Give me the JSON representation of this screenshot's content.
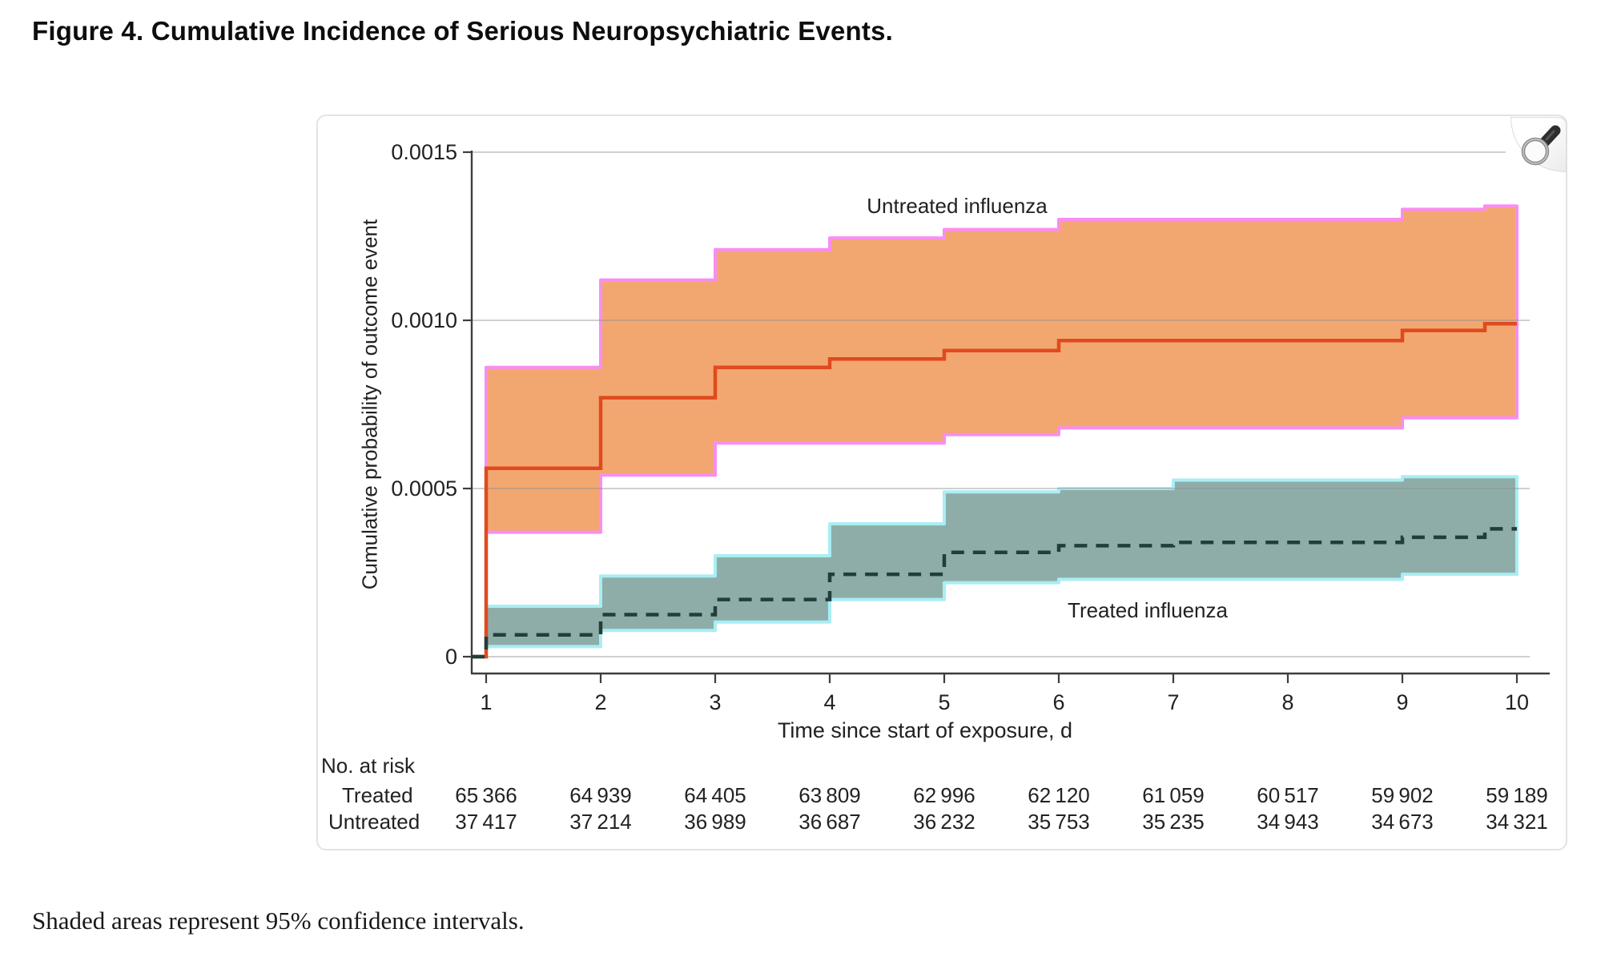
{
  "page": {
    "title": "Figure 4. Cumulative Incidence of Serious Neuropsychiatric Events.",
    "footnote": "Shaded areas represent 95% confidence intervals."
  },
  "panel": {
    "zoom_icon": "magnifier-icon"
  },
  "chart_data": {
    "type": "line",
    "subtype": "cumulative-incidence-step-curves-with-95pct-CI-bands",
    "title": "",
    "xlabel": "Time since start of exposure, d",
    "ylabel": "Cumulative probability of outcome event",
    "xlim": [
      1,
      10
    ],
    "ylim": [
      0,
      0.0015
    ],
    "grid": "horizontal",
    "x_ticks": [
      1,
      2,
      3,
      4,
      5,
      6,
      7,
      8,
      9,
      10
    ],
    "y_ticks": [
      {
        "value": 0,
        "label": "0"
      },
      {
        "value": 0.0005,
        "label": "0.0005"
      },
      {
        "value": 0.001,
        "label": "0.0010"
      },
      {
        "value": 0.0015,
        "label": "0.0015"
      }
    ],
    "series": [
      {
        "name": "Untreated influenza",
        "line_style": "solid",
        "line_color": "#e04a1e",
        "band_fill": "#f2a771",
        "band_edge": "#f98df1",
        "days": [
          1,
          2,
          3,
          4,
          5,
          6,
          7,
          8,
          9
        ],
        "values": [
          0.00056,
          0.00077,
          0.00086,
          0.000885,
          0.00091,
          0.00094,
          0.00094,
          0.00094,
          0.00097
        ],
        "end_value": 0.00099,
        "ci_upper": [
          0.00086,
          0.00112,
          0.00121,
          0.001245,
          0.00127,
          0.0013,
          0.0013,
          0.0013,
          0.00133
        ],
        "ci_upper_end": 0.00134,
        "ci_lower": [
          0.00037,
          0.00054,
          0.000635,
          0.000635,
          0.00066,
          0.00068,
          0.00068,
          0.00068,
          0.00071
        ],
        "ci_lower_end": 0.00071
      },
      {
        "name": "Treated influenza",
        "line_style": "dashed",
        "line_color": "#203f3a",
        "band_fill": "#8fada8",
        "band_edge": "#a8eef4",
        "days": [
          1,
          2,
          3,
          4,
          5,
          6,
          7,
          8,
          9
        ],
        "values": [
          6.5e-05,
          0.000125,
          0.00017,
          0.000245,
          0.00031,
          0.00033,
          0.00034,
          0.00034,
          0.000355
        ],
        "end_value": 0.00038,
        "ci_upper": [
          0.00015,
          0.00024,
          0.0003,
          0.000395,
          0.00049,
          0.0005,
          0.000525,
          0.000525,
          0.000535
        ],
        "ci_upper_end": 0.000535,
        "ci_lower": [
          3e-05,
          7.8e-05,
          0.000103,
          0.00017,
          0.00022,
          0.00023,
          0.00023,
          0.00023,
          0.000245
        ],
        "ci_lower_end": 0.000245
      }
    ],
    "risk_table": {
      "header": "No. at risk",
      "rows": [
        {
          "label": "Treated",
          "values": [
            65366,
            64939,
            64405,
            63809,
            62996,
            62120,
            61059,
            60517,
            59902,
            59189
          ]
        },
        {
          "label": "Untreated",
          "values": [
            37417,
            37214,
            36989,
            36687,
            36232,
            35753,
            35235,
            34943,
            34673,
            34321
          ]
        }
      ]
    },
    "colors": {
      "grid": "#8f8f8f",
      "axis": "#3d3d3d",
      "text": "#212121"
    }
  }
}
